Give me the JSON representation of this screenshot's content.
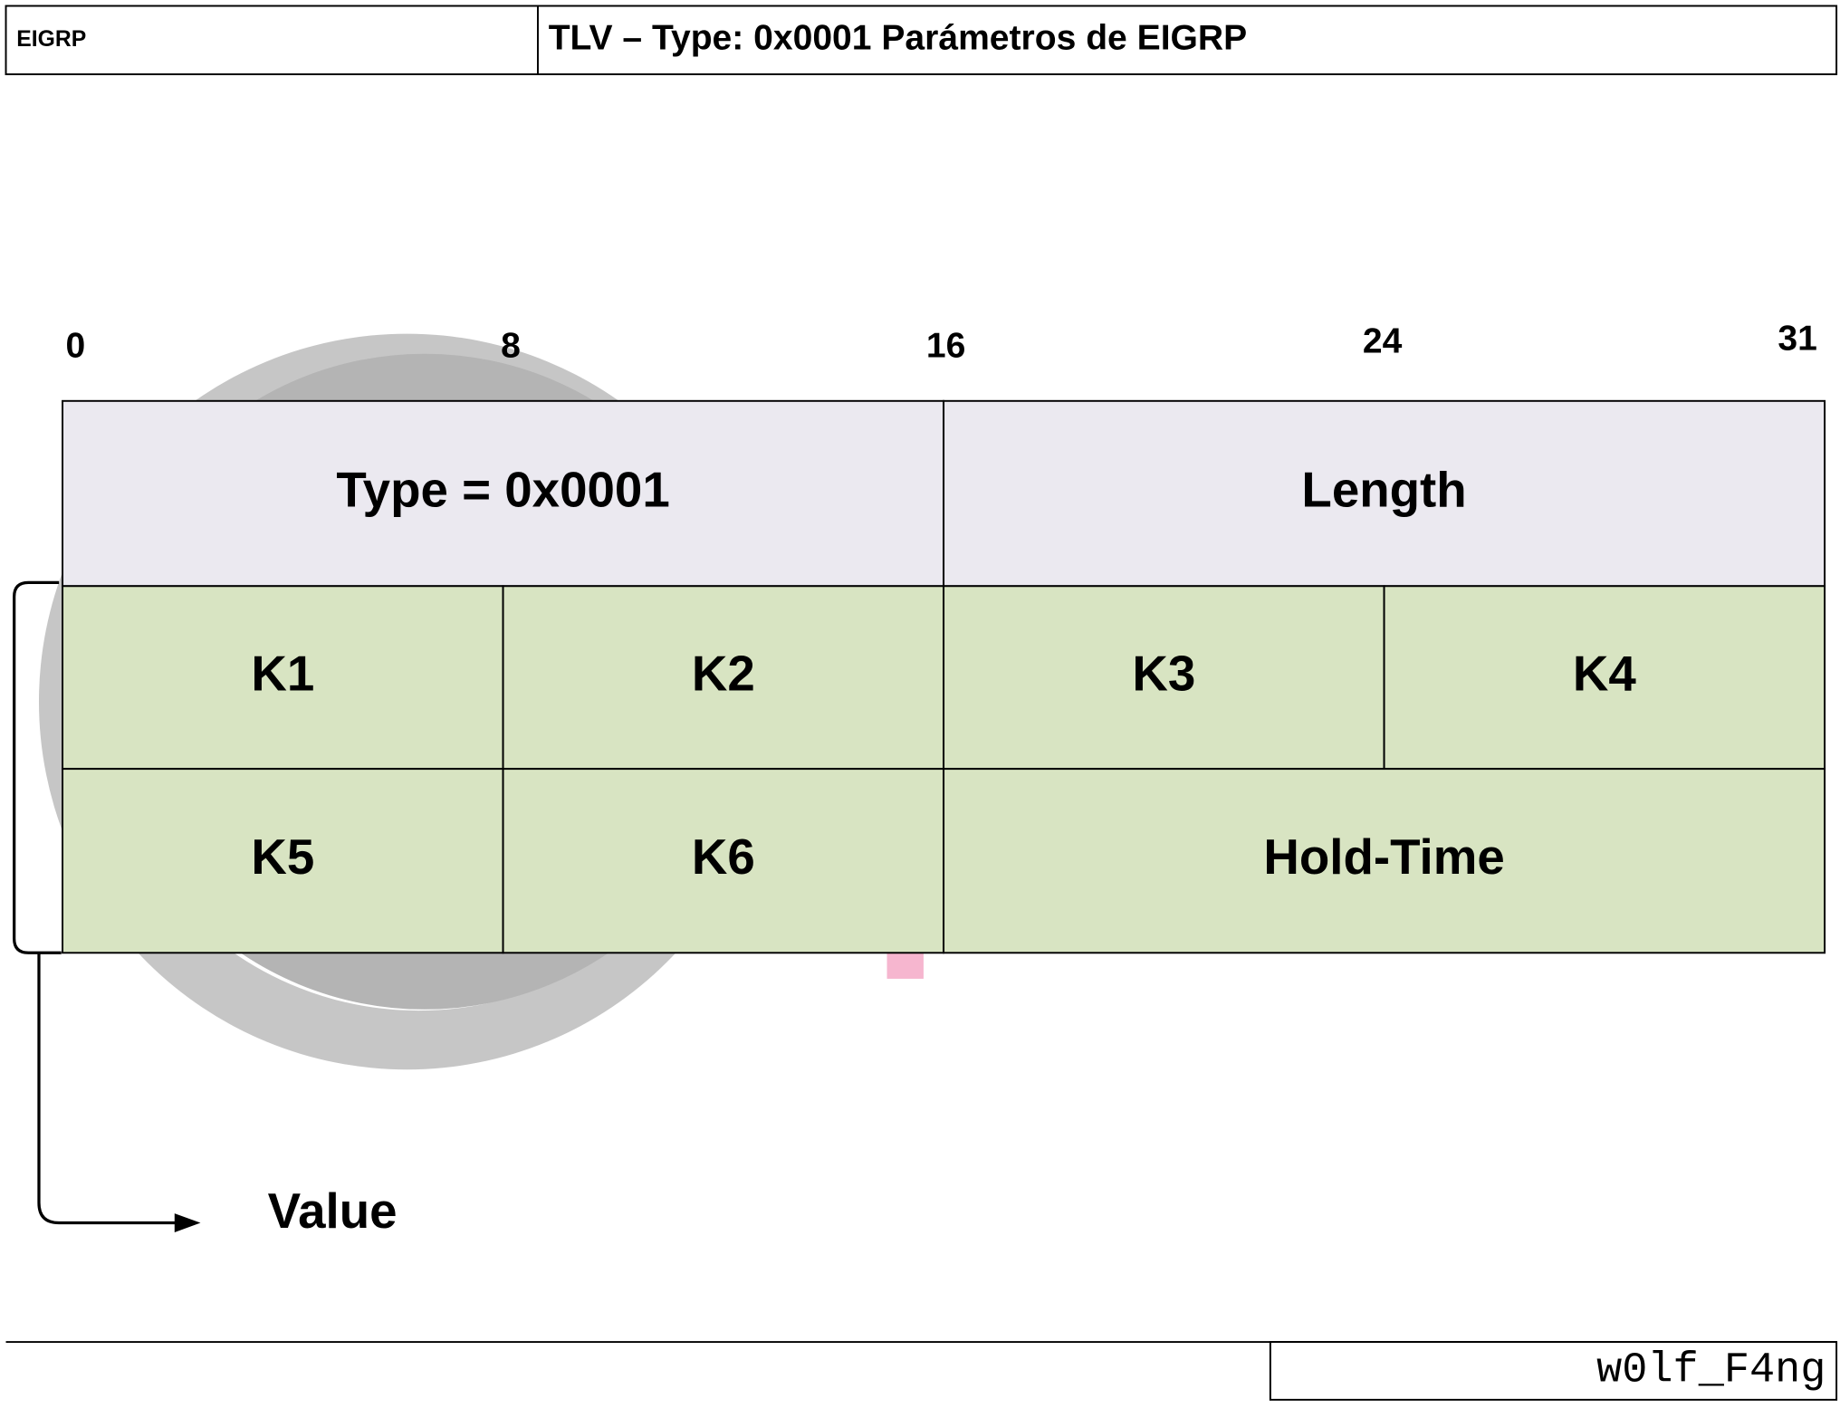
{
  "header": {
    "section": "EIGRP",
    "title": "TLV – Type: 0x0001 Parámetros de EIGRP"
  },
  "bit_labels": [
    "0",
    "8",
    "16",
    "24",
    "31"
  ],
  "fields": {
    "rows": [
      [
        "Type = 0x0001",
        "Length"
      ],
      [
        "K1",
        "K2",
        "K3",
        "K4"
      ],
      [
        "K5",
        "K6",
        "Hold-Time"
      ]
    ]
  },
  "value_label": "Value",
  "footer": {
    "author": "w0lf_F4ng"
  }
}
